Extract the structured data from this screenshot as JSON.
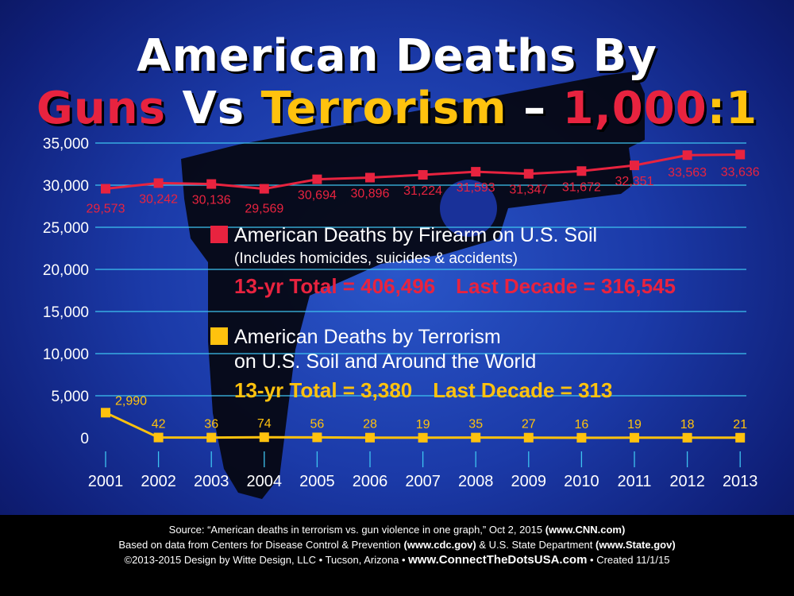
{
  "title": {
    "line1": "American Deaths By",
    "guns": "Guns",
    "vs": "Vs",
    "terrorism": "Terrorism",
    "dash": "–",
    "ratio_left": "1,000",
    "colon": ":",
    "ratio_right": "1"
  },
  "legend": {
    "firearm": {
      "label": "American Deaths by Firearm on U.S. Soil",
      "note": "(Includes homicides, suicides & accidents)",
      "total": "13-yr Total = 406,496",
      "decade": "Last Decade = 316,545"
    },
    "terror": {
      "label1": "American Deaths by Terrorism",
      "label2": "on U.S. Soil and Around the World",
      "total": "13-yr Total = 3,380",
      "decade": "Last Decade = 313"
    }
  },
  "footer": {
    "line1": "Source: “American deaths in terrorism vs. gun violence in one graph,” Oct 2, 2015",
    "line1_link": "(www.CNN.com)",
    "line2a": "Based on data from Centers for Disease Control & Prevention",
    "line2_link1": "(www.cdc.gov)",
    "line2b": "& U.S. State Department",
    "line2_link2": "(www.State.gov)",
    "line3a": "©2013-2015 Design by Witte Design, LLC • Tucson, Arizona •",
    "line3_site": "www.ConnectTheDotsUSA.com",
    "line3b": "• Created 11/1/15"
  },
  "colors": {
    "firearm": "#e8233f",
    "terror": "#ffc20e",
    "grid": "#3ec3f0"
  },
  "chart_data": {
    "type": "line",
    "categories": [
      "2001",
      "2002",
      "2003",
      "2004",
      "2005",
      "2006",
      "2007",
      "2008",
      "2009",
      "2010",
      "2011",
      "2012",
      "2013"
    ],
    "series": [
      {
        "name": "American Deaths by Firearm on U.S. Soil",
        "values": [
          29573,
          30242,
          30136,
          29569,
          30694,
          30896,
          31224,
          31593,
          31347,
          31672,
          32351,
          33563,
          33636
        ],
        "labels": [
          "29,573",
          "30,242",
          "30,136",
          "29,569",
          "30,694",
          "30,896",
          "31,224",
          "31,593",
          "31,347",
          "31,672",
          "32,351",
          "33,563",
          "33,636"
        ]
      },
      {
        "name": "American Deaths by Terrorism on U.S. Soil and Around the World",
        "values": [
          2990,
          42,
          36,
          74,
          56,
          28,
          19,
          35,
          27,
          16,
          19,
          18,
          21
        ],
        "labels": [
          "2,990",
          "42",
          "36",
          "74",
          "56",
          "28",
          "19",
          "35",
          "27",
          "16",
          "19",
          "18",
          "21"
        ]
      }
    ],
    "yticks": [
      "0",
      "5,000",
      "10,000",
      "15,000",
      "20,000",
      "25,000",
      "30,000",
      "35,000"
    ],
    "ylim": [
      0,
      35000
    ],
    "grid": true,
    "legend_position": "center"
  }
}
